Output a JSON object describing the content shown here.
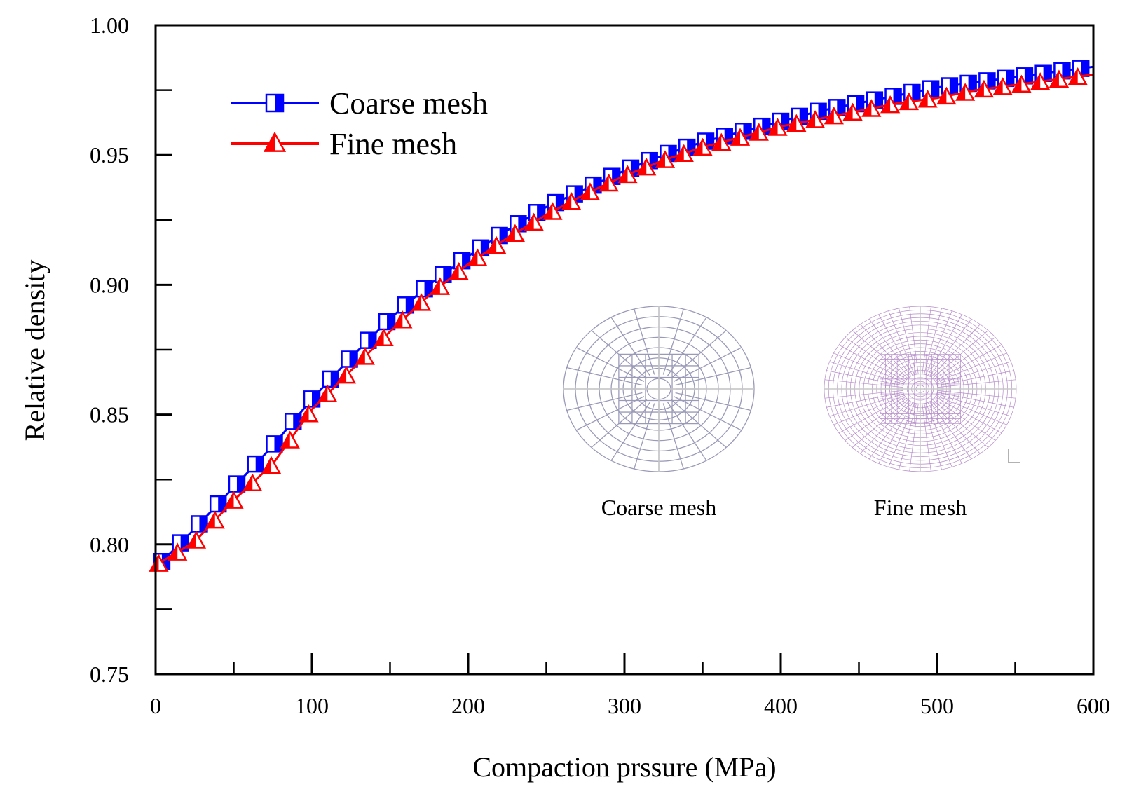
{
  "chart_data": {
    "type": "line",
    "title": "",
    "xlabel": "Compaction prssure (MPa)",
    "ylabel": "Relative density",
    "xlim": [
      0,
      600
    ],
    "ylim": [
      0.75,
      1.0
    ],
    "xticks": [
      0,
      100,
      200,
      300,
      400,
      500,
      600
    ],
    "yticks": [
      0.75,
      0.8,
      0.85,
      0.9,
      0.95,
      1.0
    ],
    "xtick_labels": [
      "0",
      "100",
      "200",
      "300",
      "400",
      "500",
      "600"
    ],
    "ytick_labels": [
      "0.75",
      "0.80",
      "0.85",
      "0.90",
      "0.95",
      "1.00"
    ],
    "grid": false,
    "legend_position": "top-left",
    "series": [
      {
        "name": "Coarse mesh",
        "color": "#0000ff",
        "marker": "square",
        "x": [
          0,
          25,
          50,
          75,
          100,
          125,
          150,
          175,
          200,
          225,
          250,
          275,
          300,
          325,
          350,
          375,
          400,
          425,
          450,
          475,
          500,
          525,
          550,
          575,
          600
        ],
        "y": [
          0.791,
          0.806,
          0.822,
          0.838,
          0.856,
          0.872,
          0.887,
          0.9,
          0.911,
          0.921,
          0.93,
          0.937,
          0.944,
          0.95,
          0.955,
          0.959,
          0.963,
          0.967,
          0.97,
          0.973,
          0.976,
          0.978,
          0.98,
          0.982,
          0.984
        ]
      },
      {
        "name": "Fine mesh",
        "color": "#ff0000",
        "marker": "triangle",
        "x": [
          0,
          25,
          50,
          75,
          100,
          125,
          150,
          175,
          200,
          225,
          250,
          275,
          300,
          325,
          350,
          375,
          400,
          425,
          450,
          475,
          500,
          525,
          550,
          575,
          600
        ],
        "y": [
          0.792,
          0.801,
          0.817,
          0.831,
          0.852,
          0.867,
          0.882,
          0.896,
          0.908,
          0.918,
          0.927,
          0.935,
          0.942,
          0.948,
          0.953,
          0.957,
          0.961,
          0.964,
          0.967,
          0.97,
          0.972,
          0.975,
          0.977,
          0.979,
          0.981
        ]
      }
    ],
    "insets": [
      {
        "label": "Coarse mesh",
        "rings": 8,
        "spokes": 24,
        "color": "#9a9ab8"
      },
      {
        "label": "Fine mesh",
        "rings": 22,
        "spokes": 56,
        "color": "#b48cc8"
      }
    ]
  }
}
